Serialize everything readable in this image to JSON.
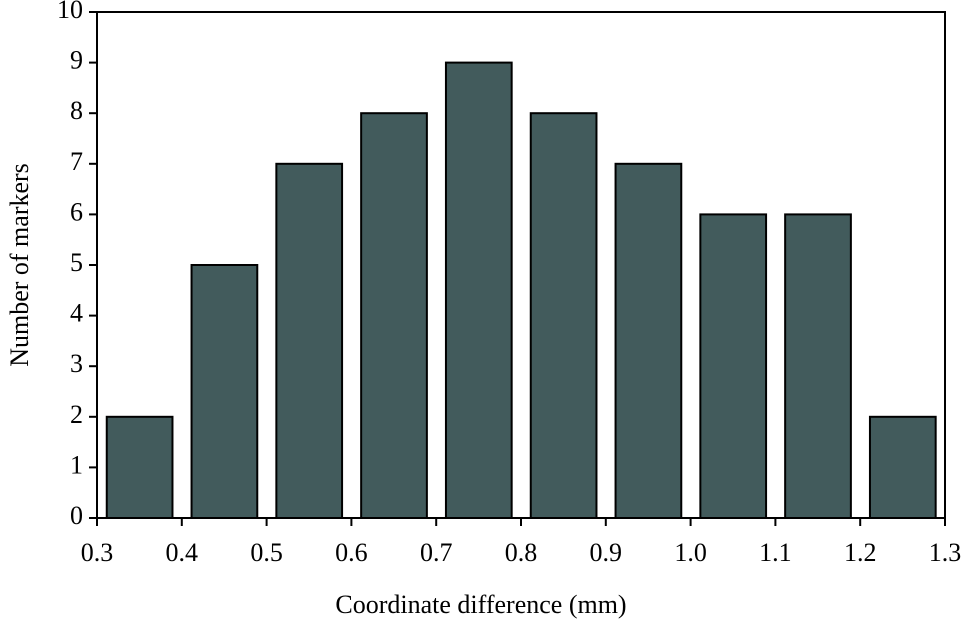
{
  "chart_data": {
    "type": "histogram",
    "xlabel": "Coordinate difference (mm)",
    "ylabel": "Number of markers",
    "bins": [
      0.3,
      0.4,
      0.5,
      0.6,
      0.7,
      0.8,
      0.9,
      1.0,
      1.1,
      1.2,
      1.3
    ],
    "values": [
      2,
      5,
      7,
      8,
      9,
      8,
      7,
      6,
      6,
      2
    ],
    "color": "#425b5c",
    "xlim": [
      0.3,
      1.3
    ],
    "xticks": [
      0.3,
      0.4,
      0.5,
      0.6,
      0.7,
      0.8,
      0.9,
      {
        "value": 1.0,
        "label": "1.0"
      },
      1.1,
      1.2,
      1.3
    ],
    "ylim": [
      0,
      10
    ],
    "yticks": [
      0,
      1,
      2,
      3,
      4,
      5,
      6,
      7,
      8,
      9,
      10
    ],
    "grid": false
  }
}
